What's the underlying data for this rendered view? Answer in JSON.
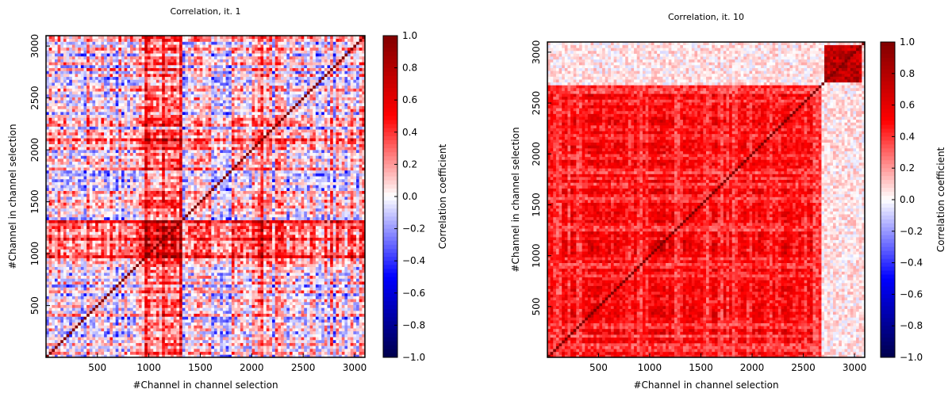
{
  "chart_data": [
    {
      "type": "heatmap",
      "title": "Correlation, it. 1",
      "xlabel": "#Channel in channel selection",
      "ylabel": "#Channel in channel selection",
      "xlim": [
        1,
        3100
      ],
      "ylim": [
        1,
        3100
      ],
      "xticks": [
        500,
        1000,
        1500,
        2000,
        2500,
        3000
      ],
      "yticks": [
        500,
        1000,
        1500,
        2000,
        2500,
        3000
      ],
      "colorbar": {
        "label": "Correlation coefficient",
        "range": [
          -1.0,
          1.0
        ],
        "ticks": [
          "1.0",
          "0.8",
          "0.6",
          "0.4",
          "0.2",
          "0.0",
          "−0.2",
          "−0.4",
          "−0.6",
          "−0.8",
          "−1.0"
        ],
        "colormap": "seismic",
        "colors": {
          "low": "#00004c",
          "mid": "#ffffff",
          "high": "#800000"
        }
      },
      "pattern": "mixed weak correlations (mostly -0.3..0.4), strong positive block around channels 950-1300, diagonal = 1.0"
    },
    {
      "type": "heatmap",
      "title": "Correlation, it. 10",
      "xlabel": "#Channel in channel selection",
      "ylabel": "#Channel in channel selection",
      "xlim": [
        1,
        3100
      ],
      "ylim": [
        1,
        3100
      ],
      "xticks": [
        500,
        1000,
        1500,
        2000,
        2500,
        3000
      ],
      "yticks": [
        500,
        1000,
        1500,
        2000,
        2500,
        3000
      ],
      "colorbar": {
        "label": "Correlation coefficient",
        "range": [
          -1.0,
          1.0
        ],
        "ticks": [
          "1.0",
          "0.8",
          "0.6",
          "0.4",
          "0.2",
          "0.0",
          "−0.2",
          "−0.4",
          "−0.6",
          "−0.8",
          "−1.0"
        ],
        "colormap": "seismic",
        "colors": {
          "low": "#00004c",
          "mid": "#ffffff",
          "high": "#800000"
        }
      },
      "pattern": "predominantly positive correlations (0.3..0.9) across channels 1-2650, weaker above 2650 except strong block ~2700-3050"
    }
  ]
}
